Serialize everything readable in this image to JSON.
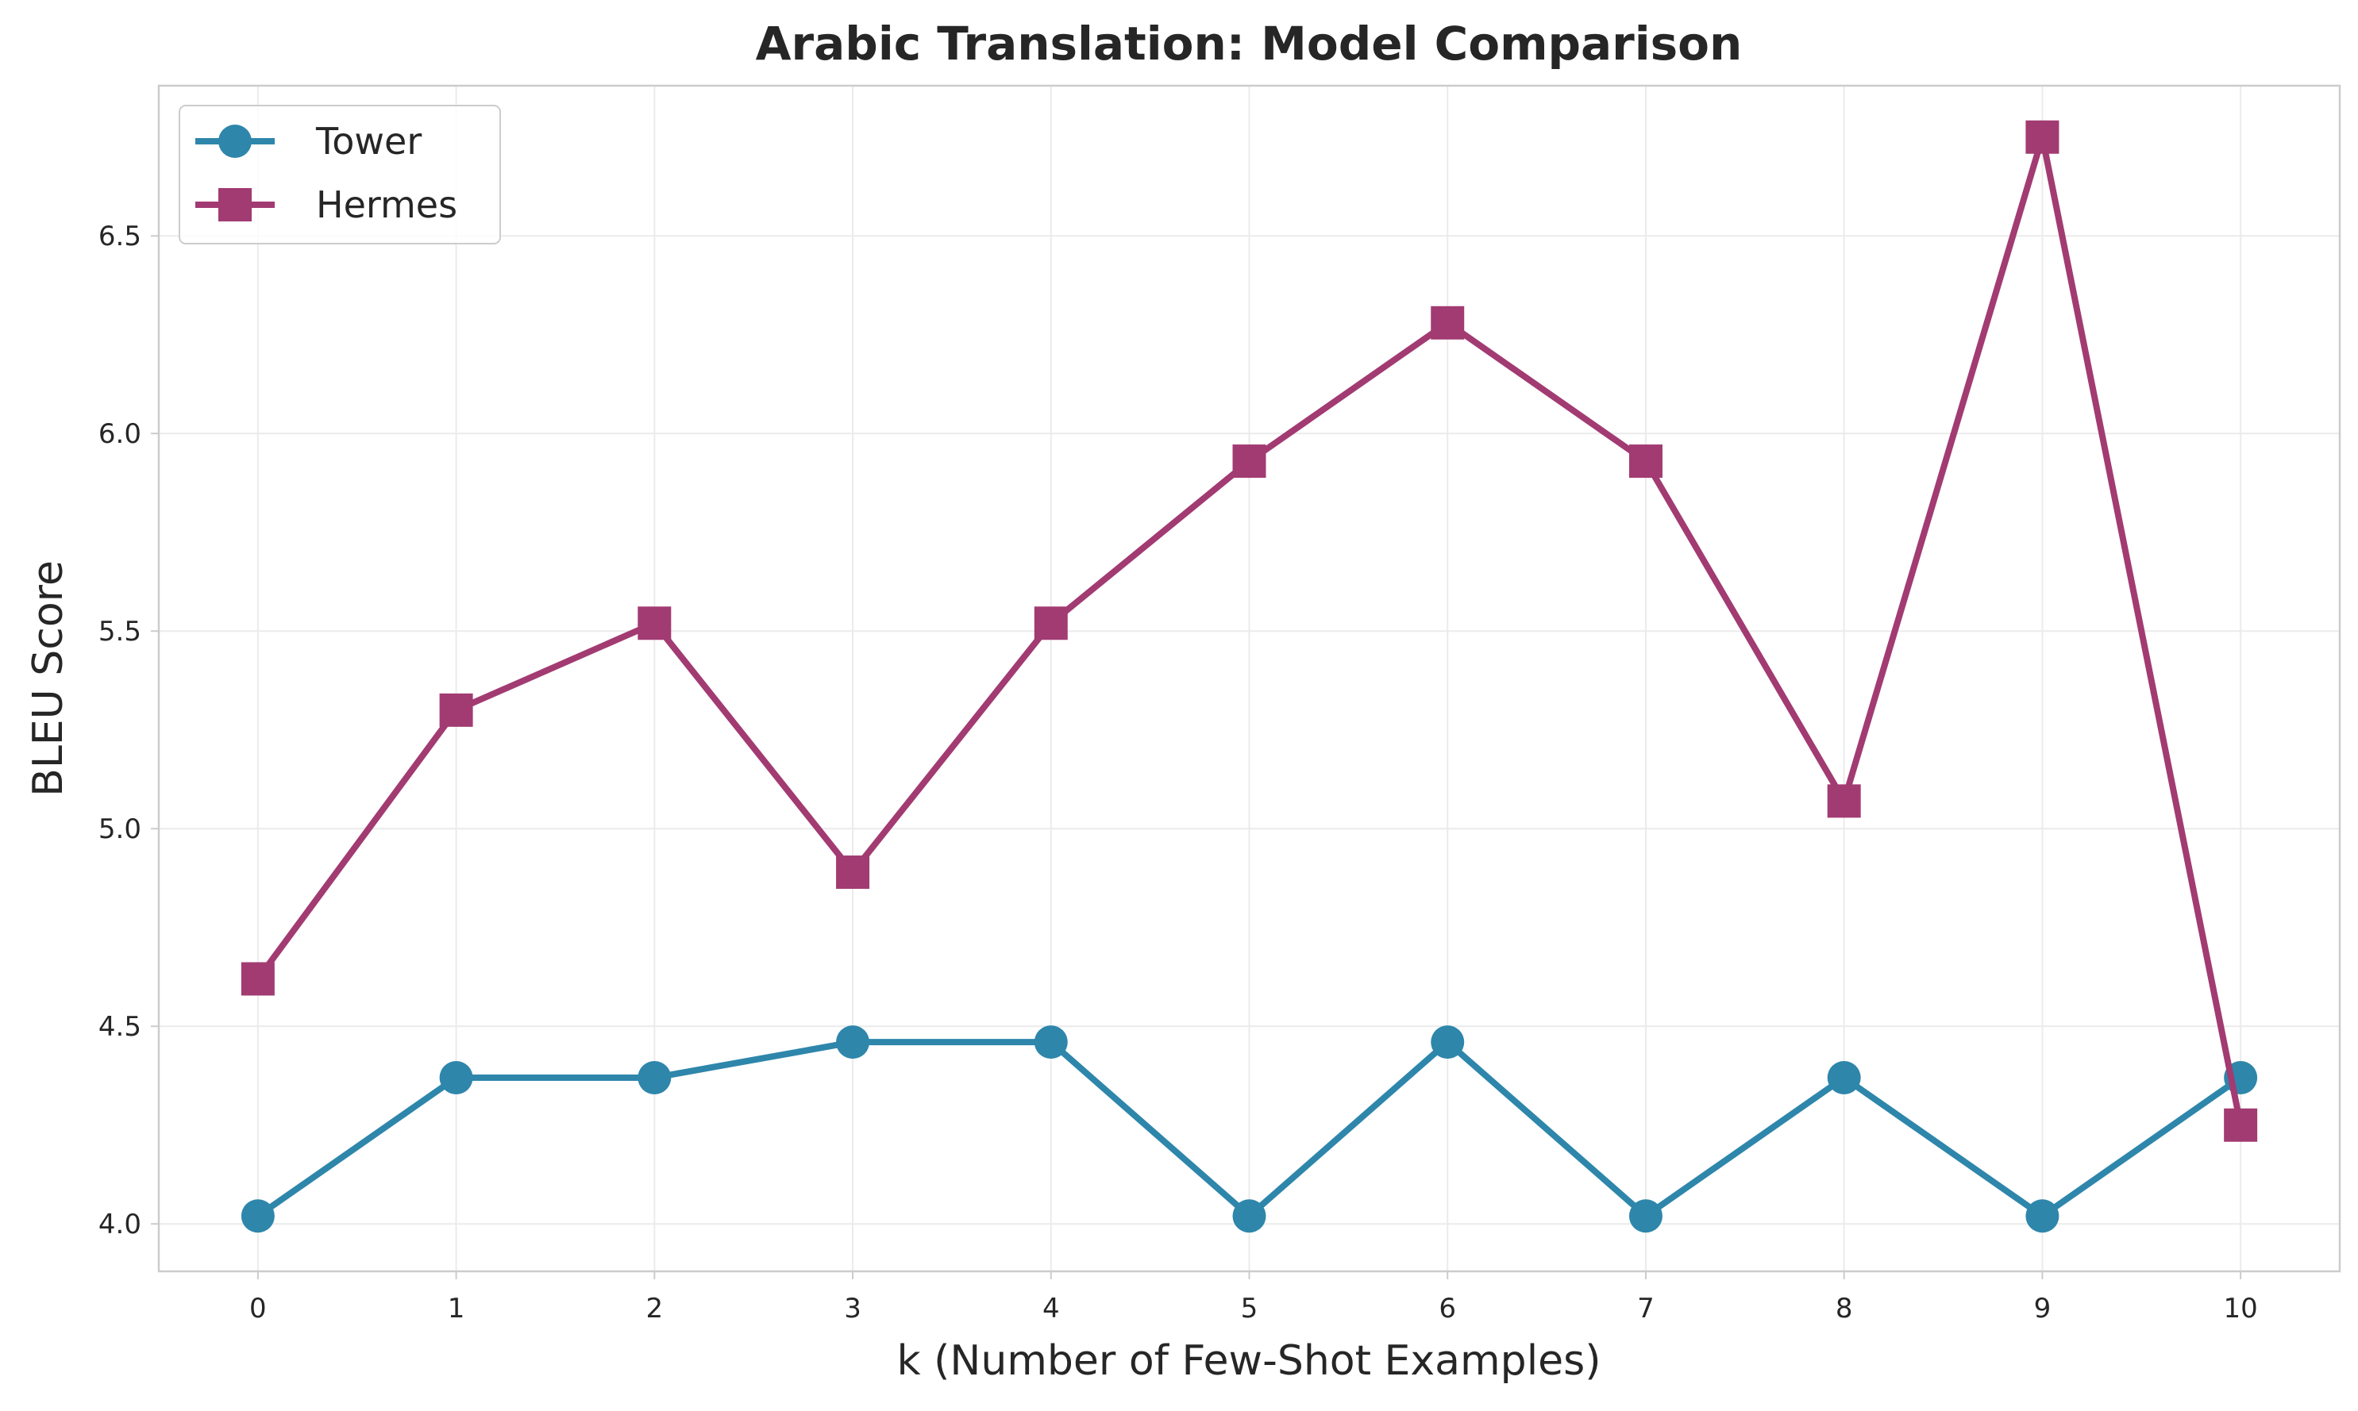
{
  "chart_data": {
    "type": "line",
    "title": "Arabic Translation: Model Comparison",
    "xlabel": "k (Number of Few-Shot Examples)",
    "ylabel": "BLEU Score",
    "x": [
      0,
      1,
      2,
      3,
      4,
      5,
      6,
      7,
      8,
      9,
      10
    ],
    "xticks": [
      "0",
      "1",
      "2",
      "3",
      "4",
      "5",
      "6",
      "7",
      "8",
      "9",
      "10"
    ],
    "yticks": [
      "4.0",
      "4.5",
      "5.0",
      "5.5",
      "6.0",
      "6.5"
    ],
    "ytick_values": [
      4.0,
      4.5,
      5.0,
      5.5,
      6.0,
      6.5
    ],
    "xlim": [
      -0.5,
      10.5
    ],
    "ylim": [
      3.88,
      6.88
    ],
    "grid": true,
    "legend_position": "top-left",
    "series": [
      {
        "name": "Tower",
        "marker": "circle",
        "color": "#2e86ab",
        "values": [
          4.02,
          4.37,
          4.37,
          4.46,
          4.46,
          4.02,
          4.46,
          4.02,
          4.37,
          4.02,
          4.37
        ]
      },
      {
        "name": "Hermes",
        "marker": "square",
        "color": "#a23b72",
        "values": [
          4.62,
          5.3,
          5.52,
          4.89,
          5.52,
          5.93,
          6.28,
          5.93,
          5.07,
          6.75,
          4.25
        ]
      }
    ]
  }
}
